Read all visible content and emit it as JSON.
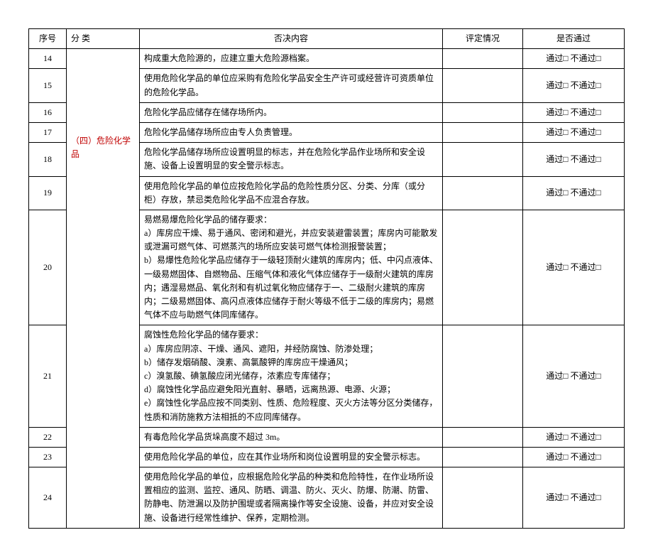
{
  "headers": {
    "seq": "序号",
    "category": "分 类",
    "content": "否决内容",
    "evaluation": "评定情况",
    "pass": "是否通过"
  },
  "category_label": "（四）危险化学品",
  "pass_label": "通过□ 不通过□",
  "rows": [
    {
      "seq": "14",
      "content": "构成重大危险源的，应建立重大危险源档案。"
    },
    {
      "seq": "15",
      "content": "使用危险化学品的单位应采购有危险化学品安全生产许可或经营许可资质单位的危险化学品。"
    },
    {
      "seq": "16",
      "content": "危险化学品应储存在储存场所内。"
    },
    {
      "seq": "17",
      "content": "危险化学品储存场所应由专人负责管理。"
    },
    {
      "seq": "18",
      "content": "危险化学品储存场所应设置明显的标志，并在危险化学品作业场所和安全设施、设备上设置明显的安全警示标志。"
    },
    {
      "seq": "19",
      "content": "使用危险化学品的单位应按危险化学品的危险性质分区、分类、分库（或分柜）存放，禁忌类危险化学品不应混合存放。"
    },
    {
      "seq": "20",
      "content": "易燃易爆危险化学品的储存要求：\na）库房应干燥、易于通风、密闭和避光，并应安装避雷装置；库房内可能散发或泄漏可燃气体、可燃蒸汽的场所应安装可燃气体检测报警装置；\nb）易爆性危险化学品应储存于一级轻顶耐火建筑的库房内；低、中闪点液体、一级易燃固体、自燃物品、压缩气体和液化气体应储存于一级耐火建筑的库房内；遇湿易燃品、氧化剂和有机过氧化物应储存于一、二级耐火建筑的库房内；二级易燃固体、高闪点液体应储存于耐火等级不低于二级的库房内；易燃气体不应与助燃气体同库储存。"
    },
    {
      "seq": "21",
      "content": "腐蚀性危险化学品的储存要求：\na）库房应阴凉、干燥、通风、遮阳，并经防腐蚀、防渗处理；\nb）储存发烟硝酸、溴素、高氯酸钾的库房应干燥通风；\nc）溴氢酸、碘氢酸应闭光储存，浓素应专库储存；\nd）腐蚀性化学品应避免阳光直射、暴晒，远离热源、电源、火源；\ne）腐蚀性化学品应按不同类别、性质、危险程度、灭火方法等分区分类储存，性质和消防施救方法相抵的不应同库储存。"
    },
    {
      "seq": "22",
      "content": "有毒危险化学品货垛高度不超过 3m。"
    },
    {
      "seq": "23",
      "content": "使用危险化学品的单位，应在其作业场所和岗位设置明显的安全警示标志。"
    },
    {
      "seq": "24",
      "content": "使用危险化学品的单位，应根据危险化学品的种类和危险特性，在作业场所设置相应的监测、监控、通风、防晒、调温、防火、灭火、防爆、防潮、防雷、防静电、防泄漏以及防护围堤或者隔离操作等安全设施、设备，并应对安全设施、设备进行经常性维护、保养，定期检测。"
    }
  ]
}
